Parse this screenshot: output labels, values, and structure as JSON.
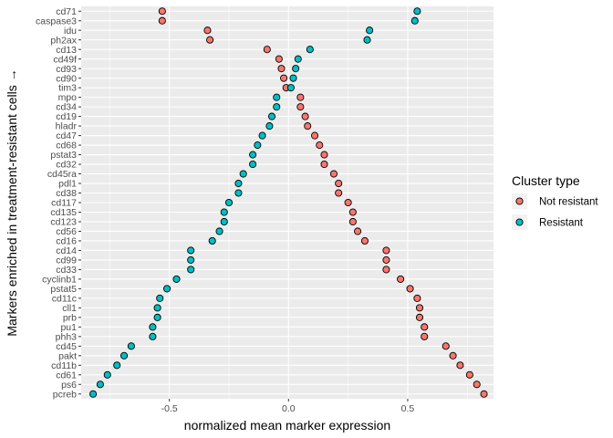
{
  "chart_data": {
    "type": "scatter",
    "xlabel": "normalized mean marker expression",
    "ylabel": "Markers enriched in treatment-resistant cells  →",
    "xlim": [
      -0.87,
      0.86
    ],
    "x_ticks": [
      -0.5,
      0.0,
      0.5
    ],
    "x_tick_labels": [
      "-0.5",
      "0.0",
      "0.5"
    ],
    "grid": true,
    "legend": {
      "title": "Cluster type",
      "placement": "right"
    },
    "categories": [
      "cd71",
      "caspase3",
      "idu",
      "ph2ax",
      "cd13",
      "cd49f",
      "cd93",
      "cd90",
      "tim3",
      "mpo",
      "cd34",
      "cd19",
      "hladr",
      "cd47",
      "cd68",
      "pstat3",
      "cd32",
      "cd45ra",
      "pdl1",
      "cd38",
      "cd117",
      "cd135",
      "cd123",
      "cd56",
      "cd16",
      "cd14",
      "cd99",
      "cd33",
      "cyclinb1",
      "pstat5",
      "cd11c",
      "cll1",
      "prb",
      "pu1",
      "phh3",
      "cd45",
      "pakt",
      "cd11b",
      "cd61",
      "ps6",
      "pcreb"
    ],
    "series": [
      {
        "name": "Not resistant",
        "color": "#F8766D",
        "values": [
          -0.53,
          -0.53,
          -0.34,
          -0.33,
          -0.09,
          -0.04,
          -0.03,
          -0.02,
          -0.01,
          0.05,
          0.05,
          0.07,
          0.08,
          0.11,
          0.13,
          0.15,
          0.15,
          0.19,
          0.21,
          0.21,
          0.25,
          0.27,
          0.27,
          0.29,
          0.32,
          0.41,
          0.41,
          0.41,
          0.47,
          0.51,
          0.54,
          0.55,
          0.55,
          0.57,
          0.57,
          0.66,
          0.69,
          0.72,
          0.76,
          0.79,
          0.82
        ]
      },
      {
        "name": "Resistant",
        "color": "#00BFC4",
        "values": [
          0.54,
          0.53,
          0.34,
          0.33,
          0.09,
          0.04,
          0.03,
          0.02,
          0.01,
          -0.05,
          -0.05,
          -0.07,
          -0.08,
          -0.11,
          -0.13,
          -0.15,
          -0.15,
          -0.19,
          -0.21,
          -0.21,
          -0.25,
          -0.27,
          -0.27,
          -0.29,
          -0.32,
          -0.41,
          -0.41,
          -0.41,
          -0.47,
          -0.51,
          -0.54,
          -0.55,
          -0.55,
          -0.57,
          -0.57,
          -0.66,
          -0.69,
          -0.72,
          -0.76,
          -0.79,
          -0.82
        ]
      }
    ]
  }
}
